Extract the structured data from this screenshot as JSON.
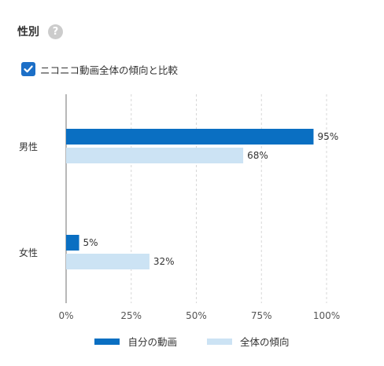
{
  "section": {
    "title": "性別",
    "help_icon": "question-circle-icon",
    "help_glyph": "?"
  },
  "compare": {
    "checked": true,
    "label": "ニコニコ動画全体の傾向と比較"
  },
  "colors": {
    "own": "#0a6fc2",
    "overall": "#cce3f4",
    "axis": "#888888",
    "grid": "#d7d7d7",
    "checkbox": "#1c6fc7"
  },
  "chart_data": {
    "type": "bar",
    "orientation": "horizontal",
    "categories": [
      "男性",
      "女性"
    ],
    "series": [
      {
        "name": "自分の動画",
        "values": [
          95,
          5
        ]
      },
      {
        "name": "全体の傾向",
        "values": [
          68,
          32
        ]
      }
    ],
    "value_labels": [
      [
        "95%",
        "5%"
      ],
      [
        "68%",
        "32%"
      ]
    ],
    "xlim": [
      0,
      100
    ],
    "x_ticks": [
      "0%",
      "25%",
      "50%",
      "75%",
      "100%"
    ],
    "grid": true,
    "legend": "bottom"
  }
}
